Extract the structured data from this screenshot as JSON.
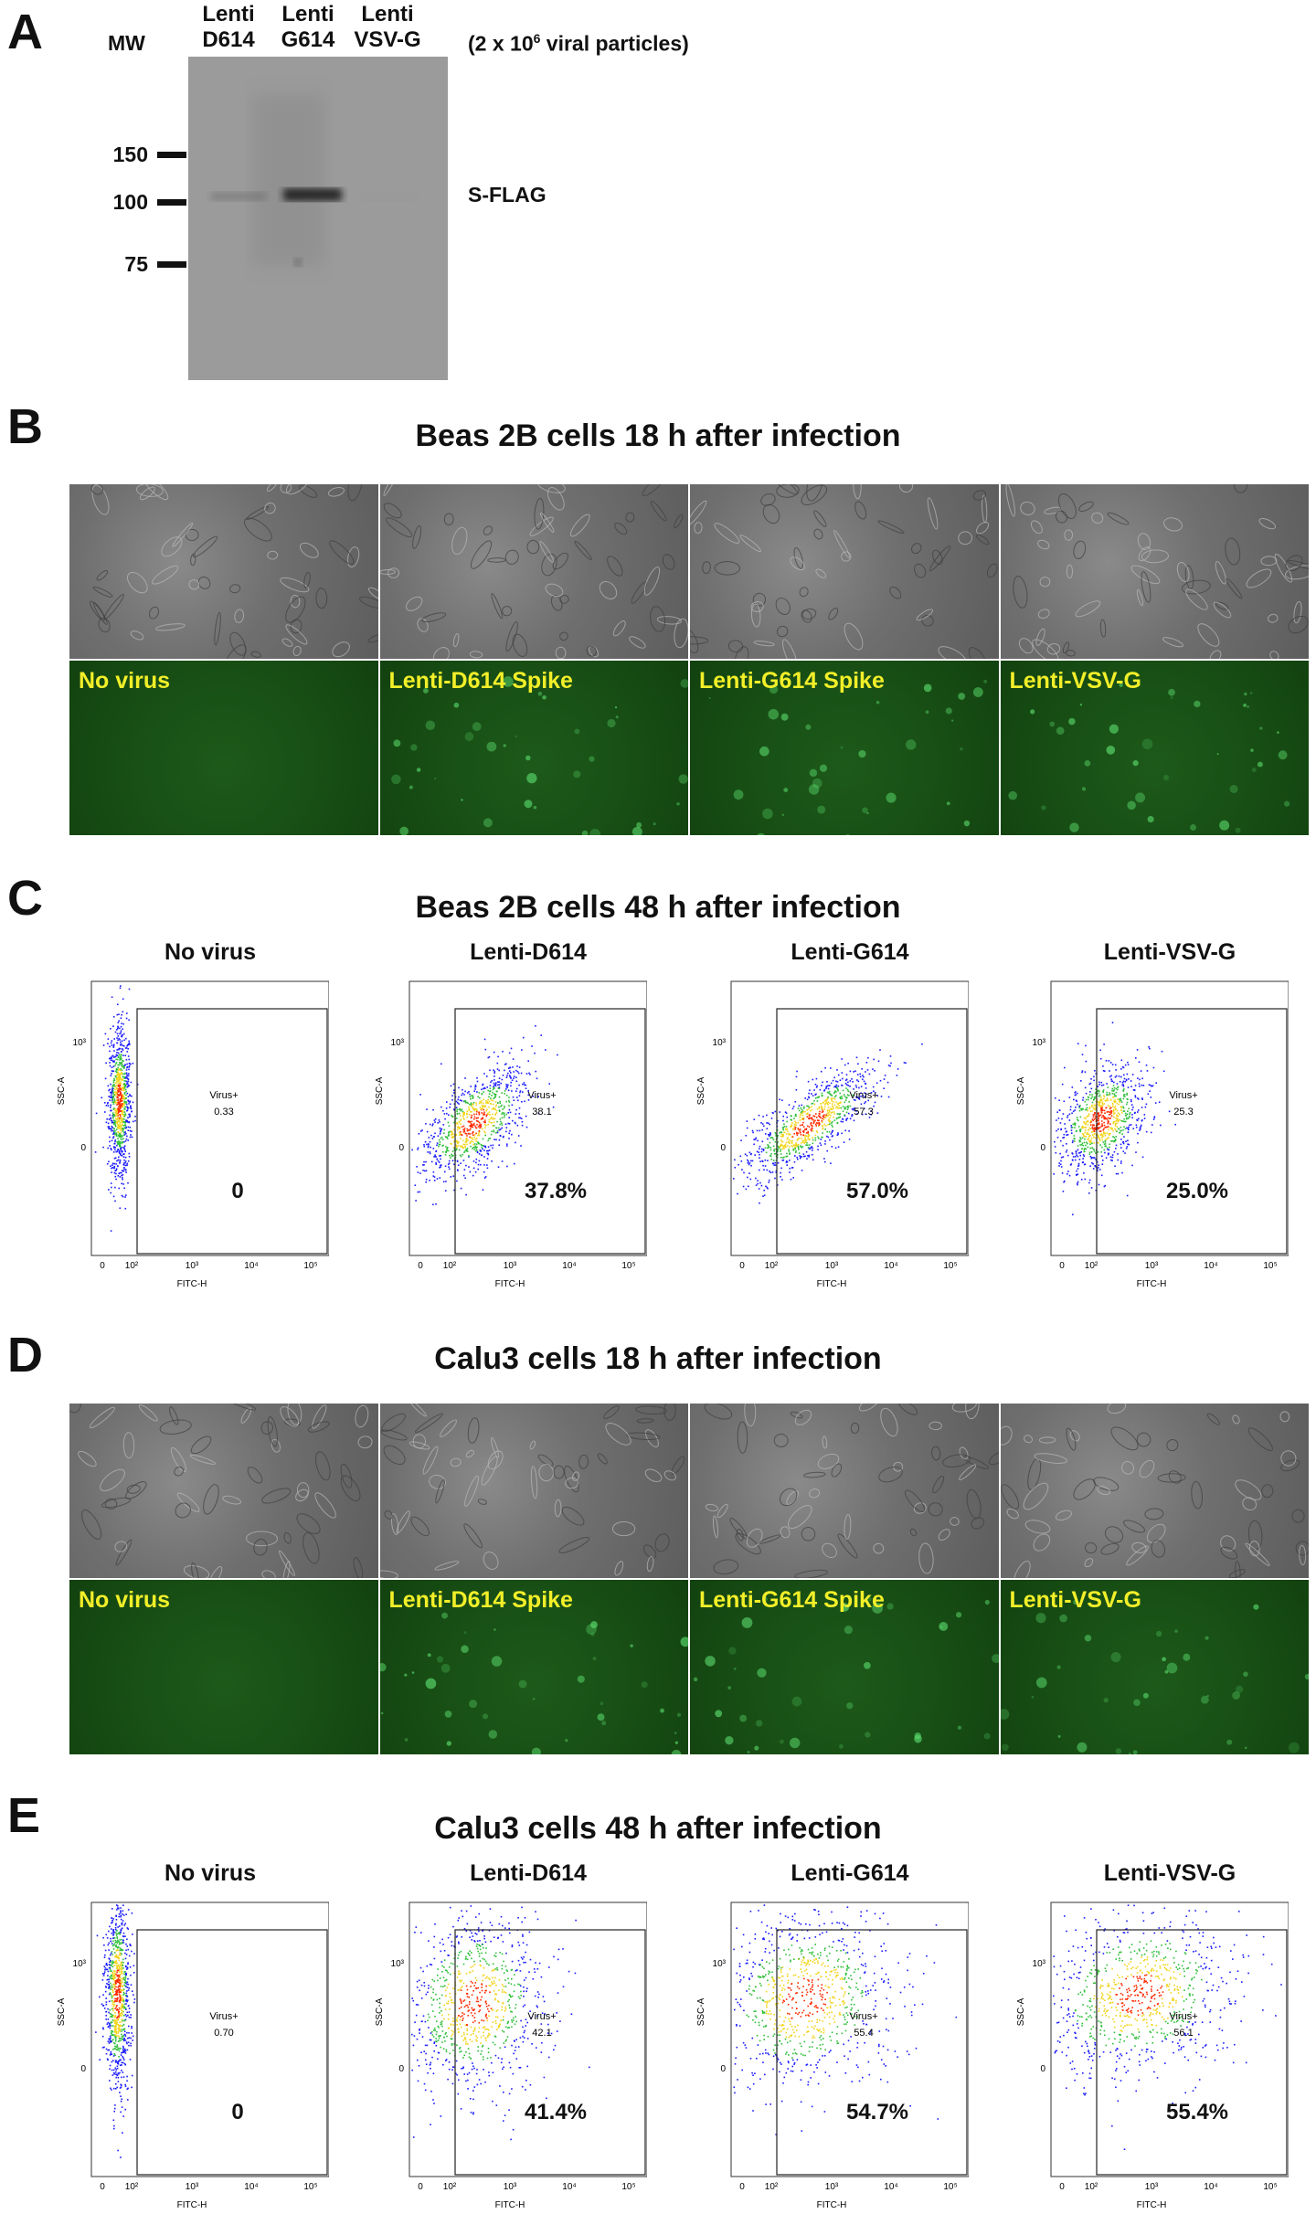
{
  "panel_a": {
    "letter": "A",
    "mw_header": "MW",
    "lanes": [
      {
        "line1": "Lenti",
        "line2": "D614"
      },
      {
        "line1": "Lenti",
        "line2": "G614"
      },
      {
        "line1": "Lenti",
        "line2": "VSV-G"
      }
    ],
    "particles_note_pre": "(2 x 10",
    "particles_note_sup": "6",
    "particles_note_post": " viral particles)",
    "mw_ticks": [
      "150",
      "100",
      "75"
    ],
    "band_label": "S-FLAG",
    "band_intensity": [
      0.25,
      0.9,
      0.02
    ]
  },
  "panel_b": {
    "letter": "B",
    "title": "Beas 2B cells 18 h after infection",
    "labels": [
      "No virus",
      "Lenti-D614 Spike",
      "Lenti-G614 Spike",
      "Lenti-VSV-G"
    ]
  },
  "panel_c": {
    "letter": "C",
    "title": "Beas 2B cells 48 h after infection",
    "plots": [
      {
        "title": "No virus",
        "gate_label": "Virus+",
        "gate_value": "0.33",
        "pct": "0"
      },
      {
        "title": "Lenti-D614",
        "gate_label": "Virus+",
        "gate_value": "38.1",
        "pct": "37.8%"
      },
      {
        "title": "Lenti-G614",
        "gate_label": "Virus+",
        "gate_value": "57.3",
        "pct": "57.0%"
      },
      {
        "title": "Lenti-VSV-G",
        "gate_label": "Virus+",
        "gate_value": "25.3",
        "pct": "25.0%"
      }
    ]
  },
  "panel_d": {
    "letter": "D",
    "title": "Calu3 cells 18 h after infection",
    "labels": [
      "No virus",
      "Lenti-D614 Spike",
      "Lenti-G614 Spike",
      "Lenti-VSV-G"
    ]
  },
  "panel_e": {
    "letter": "E",
    "title": "Calu3 cells 48 h after infection",
    "plots": [
      {
        "title": "No virus",
        "gate_label": "Virus+",
        "gate_value": "0.70",
        "pct": "0"
      },
      {
        "title": "Lenti-D614",
        "gate_label": "Virus+",
        "gate_value": "42.1",
        "pct": "41.4%"
      },
      {
        "title": "Lenti-G614",
        "gate_label": "Virus+",
        "gate_value": "55.4",
        "pct": "54.7%"
      },
      {
        "title": "Lenti-VSV-G",
        "gate_label": "Virus+",
        "gate_value": "56.1",
        "pct": "55.4%"
      }
    ]
  },
  "flow_axes": {
    "y_label": "SSC-A",
    "x_label": "FITC-H",
    "y_ticks": [
      "10³",
      "0"
    ],
    "x_ticks": [
      "0",
      "10²",
      "10³",
      "10⁴",
      "10⁵"
    ]
  },
  "colors": {
    "fluor_label": "#f2ef29",
    "dot_low": "#1a1aff",
    "dot_high": "#ff2a00"
  }
}
